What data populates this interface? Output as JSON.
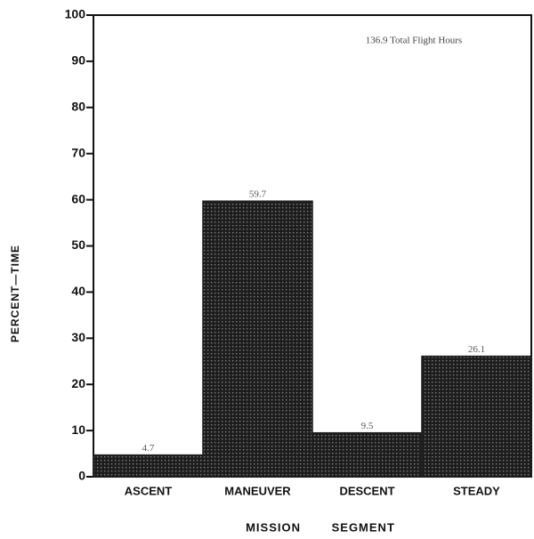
{
  "chart_data": {
    "type": "bar",
    "annotation": "136.9 Total Flight Hours",
    "y_label": "PERCENT—TIME",
    "x_label": "MISSION SEGMENT",
    "categories": [
      "ASCENT",
      "MANEUVER",
      "DESCENT",
      "STEADY"
    ],
    "values": [
      4.7,
      59.7,
      9.5,
      26.1
    ],
    "color": "#1e1e1e",
    "ylim": [
      0,
      100
    ],
    "yticks": [
      0,
      10,
      20,
      30,
      40,
      50,
      60,
      70,
      80,
      90,
      100
    ],
    "grid": false
  }
}
